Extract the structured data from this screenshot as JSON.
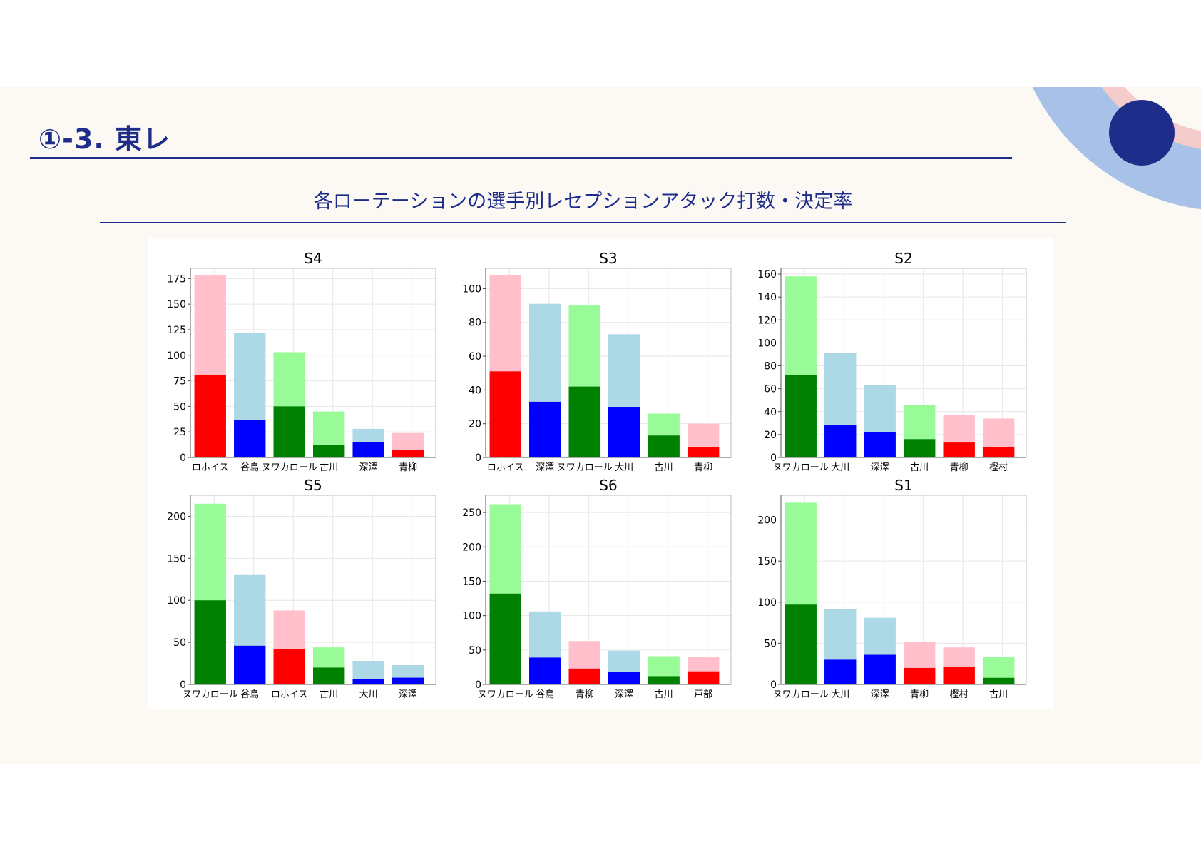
{
  "slide": {
    "title": "①-3. 東レ",
    "subtitle": "各ローテーションの選手別レセプションアタック打数・決定率"
  },
  "colors": {
    "brand_navy": "#1f2d8a",
    "deco_blue": "#a8c1e8",
    "deco_pink": "#f5cccc",
    "deco_dot": "#1f2d8a",
    "series_colors": {
      "red": {
        "total": "#ffc0cb",
        "kills": "#ff0000"
      },
      "blue": {
        "total": "#add8e6",
        "kills": "#0000ff"
      },
      "green": {
        "total": "#98fb98",
        "kills": "#008000"
      }
    }
  },
  "chart_data": [
    {
      "type": "bar",
      "title": "S4",
      "grid": true,
      "ylim": [
        0,
        185
      ],
      "yticks": [
        0,
        25,
        50,
        75,
        100,
        125,
        150,
        175
      ],
      "categories": [
        "ロホイス",
        "谷島",
        "ヌワカロール",
        "古川",
        "深澤",
        "青柳"
      ],
      "series": [
        {
          "values": [
            178,
            122,
            103,
            45,
            28,
            24
          ]
        },
        {
          "values": [
            81,
            37,
            50,
            12,
            15,
            7
          ]
        }
      ],
      "colors": [
        "red",
        "blue",
        "green",
        "green",
        "blue",
        "red"
      ]
    },
    {
      "type": "bar",
      "title": "S3",
      "grid": true,
      "ylim": [
        0,
        112
      ],
      "yticks": [
        0,
        20,
        40,
        60,
        80,
        100
      ],
      "categories": [
        "ロホイス",
        "深澤",
        "ヌワカロール",
        "大川",
        "古川",
        "青柳"
      ],
      "series": [
        {
          "values": [
            108,
            91,
            90,
            73,
            26,
            20
          ]
        },
        {
          "values": [
            51,
            33,
            42,
            30,
            13,
            6
          ]
        }
      ],
      "colors": [
        "red",
        "blue",
        "green",
        "blue",
        "green",
        "red"
      ]
    },
    {
      "type": "bar",
      "title": "S2",
      "grid": true,
      "ylim": [
        0,
        165
      ],
      "yticks": [
        0,
        20,
        40,
        60,
        80,
        100,
        120,
        140,
        160
      ],
      "categories": [
        "ヌワカロール",
        "大川",
        "深澤",
        "古川",
        "青柳",
        "樫村"
      ],
      "series": [
        {
          "values": [
            158,
            91,
            63,
            46,
            37,
            34
          ]
        },
        {
          "values": [
            72,
            28,
            22,
            16,
            13,
            9
          ]
        }
      ],
      "colors": [
        "green",
        "blue",
        "blue",
        "green",
        "red",
        "red"
      ]
    },
    {
      "type": "bar",
      "title": "S5",
      "grid": true,
      "ylim": [
        0,
        225
      ],
      "yticks": [
        0,
        50,
        100,
        150,
        200
      ],
      "categories": [
        "ヌワカロール",
        "谷島",
        "ロホイス",
        "古川",
        "大川",
        "深澤"
      ],
      "series": [
        {
          "values": [
            215,
            131,
            88,
            44,
            28,
            23
          ]
        },
        {
          "values": [
            100,
            46,
            42,
            20,
            6,
            8
          ]
        }
      ],
      "colors": [
        "green",
        "blue",
        "red",
        "green",
        "blue",
        "blue"
      ]
    },
    {
      "type": "bar",
      "title": "S6",
      "grid": true,
      "ylim": [
        0,
        275
      ],
      "yticks": [
        0,
        50,
        100,
        150,
        200,
        250
      ],
      "categories": [
        "ヌワカロール",
        "谷島",
        "青柳",
        "深澤",
        "古川",
        "戸部"
      ],
      "series": [
        {
          "values": [
            262,
            106,
            63,
            49,
            41,
            40
          ]
        },
        {
          "values": [
            132,
            39,
            23,
            18,
            12,
            19
          ]
        }
      ],
      "colors": [
        "green",
        "blue",
        "red",
        "blue",
        "green",
        "red"
      ]
    },
    {
      "type": "bar",
      "title": "S1",
      "grid": true,
      "ylim": [
        0,
        230
      ],
      "yticks": [
        0,
        50,
        100,
        150,
        200
      ],
      "categories": [
        "ヌワカロール",
        "大川",
        "深澤",
        "青柳",
        "樫村",
        "古川"
      ],
      "series": [
        {
          "values": [
            221,
            92,
            81,
            52,
            45,
            33
          ]
        },
        {
          "values": [
            97,
            30,
            36,
            20,
            21,
            8
          ]
        }
      ],
      "colors": [
        "green",
        "blue",
        "blue",
        "red",
        "red",
        "green"
      ]
    }
  ]
}
